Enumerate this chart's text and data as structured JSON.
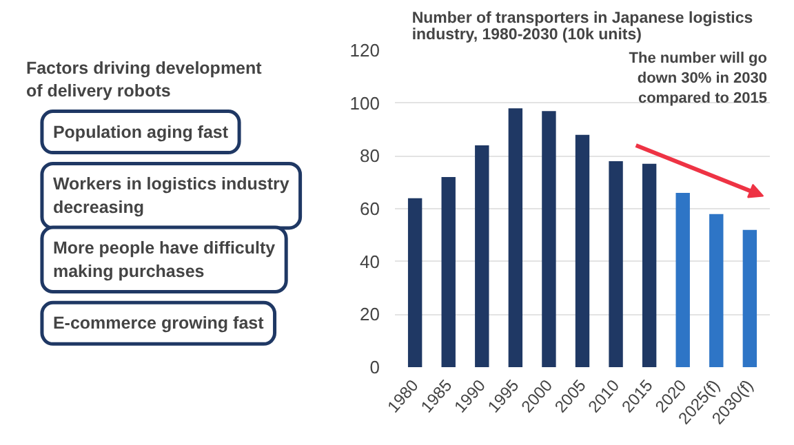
{
  "chart_data": [
    {
      "type": "other",
      "title": "Factors driving development of delivery robots",
      "annotations": [
        "Population aging fast",
        "Workers in logistics industry decreasing",
        "More people have difficulty making purchases",
        "E-commerce growing fast"
      ]
    },
    {
      "type": "bar",
      "title": "Number of transporters in Japanese logistics industry, 1980-2030 (10k units)",
      "categories": [
        "1980",
        "1985",
        "1990",
        "1995",
        "2000",
        "2005",
        "2010",
        "2015",
        "2020",
        "2025(f)",
        "2030(f)"
      ],
      "values": [
        64,
        72,
        84,
        98,
        97,
        88,
        78,
        77,
        66,
        58,
        52
      ],
      "colors": [
        "#1f3864",
        "#1f3864",
        "#1f3864",
        "#1f3864",
        "#1f3864",
        "#1f3864",
        "#1f3864",
        "#1f3864",
        "#2e75c6",
        "#2e75c6",
        "#2e75c6"
      ],
      "ylim": [
        0,
        120
      ],
      "yticks": [
        0,
        20,
        40,
        60,
        80,
        100,
        120
      ],
      "grid": "y",
      "annotations": [
        "The number will go down 30% in 2030 compared to 2015"
      ]
    }
  ]
}
